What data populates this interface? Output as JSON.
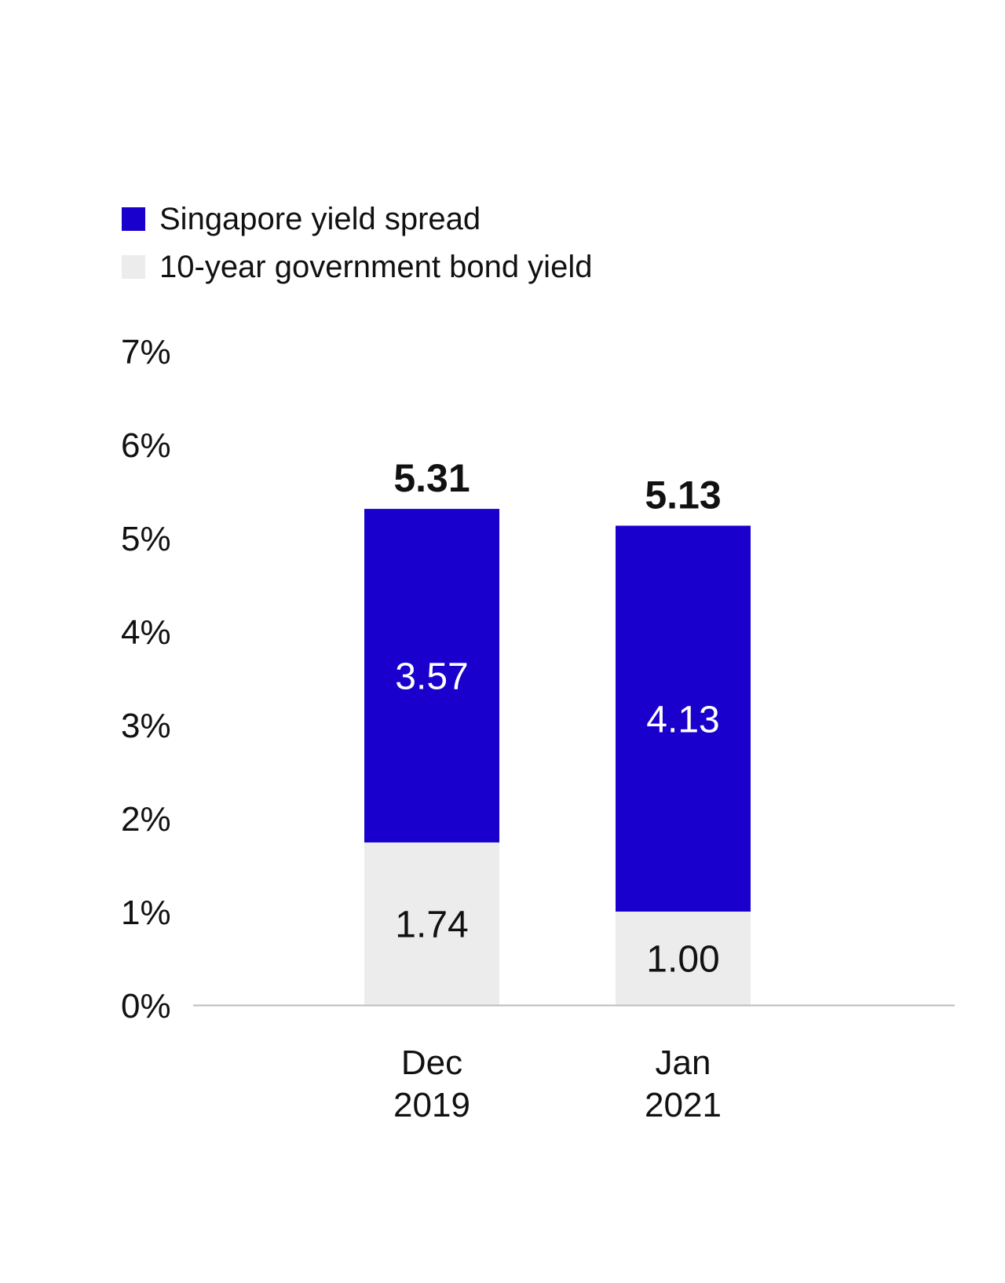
{
  "chart_data": {
    "type": "bar",
    "stacked": true,
    "categories": [
      [
        "Dec",
        "2019"
      ],
      [
        "Jan",
        "2021"
      ]
    ],
    "series": [
      {
        "name": "10-year government bond yield",
        "values": [
          1.74,
          1.0
        ],
        "color": "#ececec",
        "label_color": "#111111"
      },
      {
        "name": "Singapore yield spread",
        "values": [
          3.57,
          4.13
        ],
        "color": "#1a00cc",
        "label_color": "#ffffff"
      }
    ],
    "totals": [
      5.31,
      5.13
    ],
    "value_labels": {
      "series": [
        [
          "1.74",
          "1.00"
        ],
        [
          "3.57",
          "4.13"
        ]
      ],
      "totals": [
        "5.31",
        "5.13"
      ]
    },
    "legend": [
      {
        "name": "Singapore yield spread",
        "color": "#1a00cc"
      },
      {
        "name": "10-year government bond yield",
        "color": "#ececec"
      }
    ],
    "legend_position": "top-left",
    "y_ticks": [
      "0%",
      "1%",
      "2%",
      "3%",
      "4%",
      "5%",
      "6%",
      "7%"
    ],
    "ylim": [
      0,
      7
    ],
    "grid": false,
    "axis_color": "#bbbbbb"
  }
}
